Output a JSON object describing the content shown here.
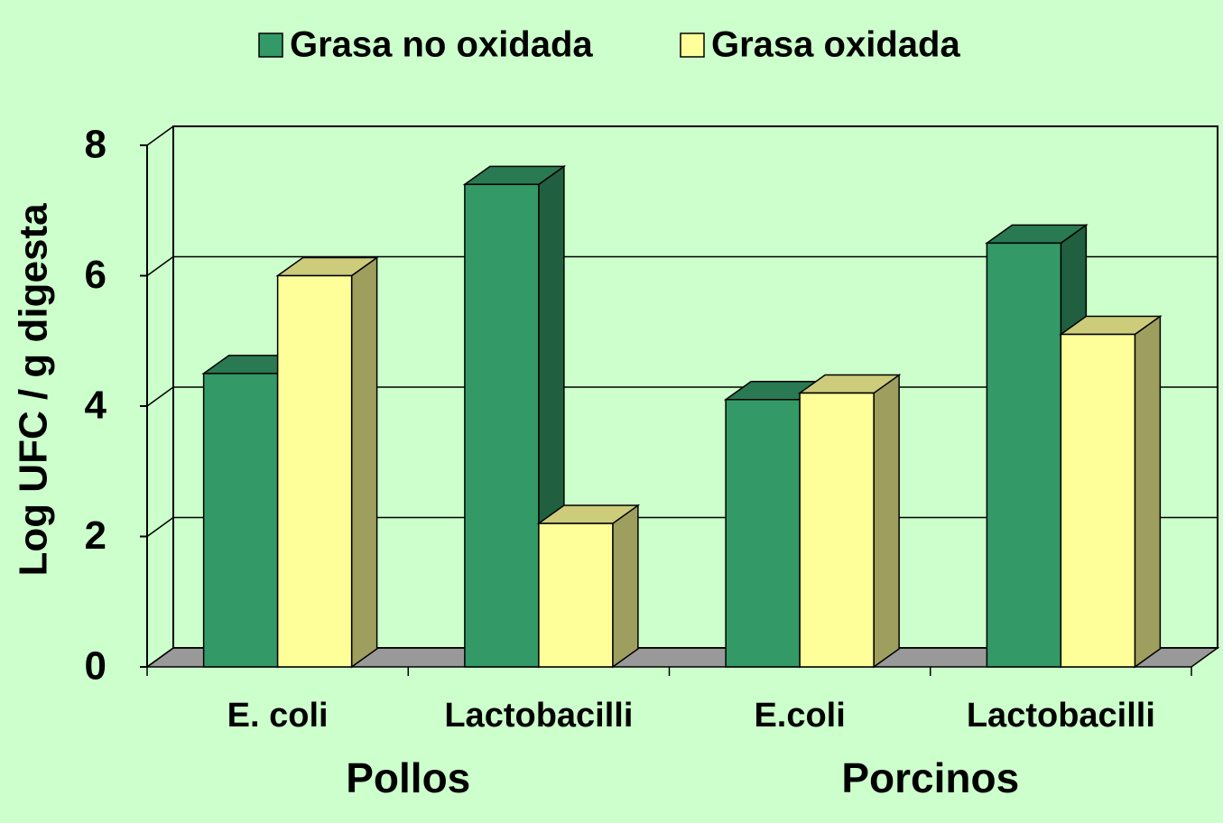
{
  "chart_data": {
    "type": "bar3d",
    "y_label": "Log UFC / g digesta",
    "categories": [
      "E. coli",
      "Lactobacilli",
      "E.coli",
      "Lactobacilli"
    ],
    "groups": [
      "Pollos",
      "Porcinos"
    ],
    "series": [
      {
        "name": "Grasa no oxidada",
        "color": "#339966",
        "values": [
          4.5,
          7.4,
          4.1,
          6.5
        ]
      },
      {
        "name": "Grasa oxidada",
        "color": "#ffff99",
        "values": [
          6,
          2.2,
          4.2,
          5.1
        ]
      }
    ],
    "ylim": [
      0,
      8
    ],
    "yticks": [
      0,
      2,
      4,
      6,
      8
    ],
    "grid": true
  }
}
